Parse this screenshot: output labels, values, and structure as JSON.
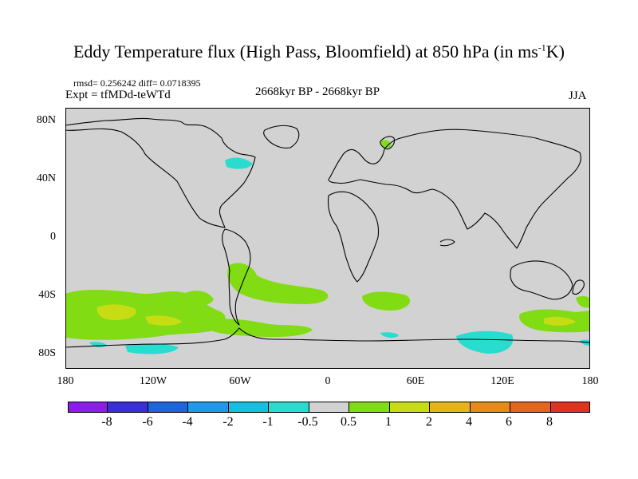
{
  "title": {
    "main": "Eddy Temperature flux (High Pass, Bloomfield) at 850 hPa (in ms",
    "superscript": "-1",
    "suffix": "K)"
  },
  "stats": "rmsd= 0.256242 diff= 0.0718395",
  "experiment": "Expt = tfMDd-teWTd",
  "period": "2668kyr BP - 2668kyr BP",
  "season": "JJA",
  "axes": {
    "lat_labels": [
      "80N",
      "40N",
      "0",
      "40S",
      "80S"
    ],
    "lon_labels": [
      "180",
      "120W",
      "60W",
      "0",
      "60E",
      "120E",
      "180"
    ]
  },
  "colorbar": {
    "colors": [
      "#8a1ee8",
      "#3a2ed8",
      "#1e64dc",
      "#1e9ae8",
      "#14c0e0",
      "#28dcd0",
      "#d2d2d2",
      "#82dc14",
      "#c8dc14",
      "#e6b414",
      "#e68c14",
      "#e6641e",
      "#e0321e"
    ],
    "labels": [
      "-8",
      "-6",
      "-4",
      "-2",
      "-1",
      "-0.5",
      "0.5",
      "1",
      "2",
      "4",
      "6",
      "8"
    ]
  },
  "map_colors": {
    "background": "#d2d2d2",
    "coast": "#000000",
    "green": "#82dc14",
    "yellow": "#c8dc14",
    "cyan": "#28dcd0"
  }
}
